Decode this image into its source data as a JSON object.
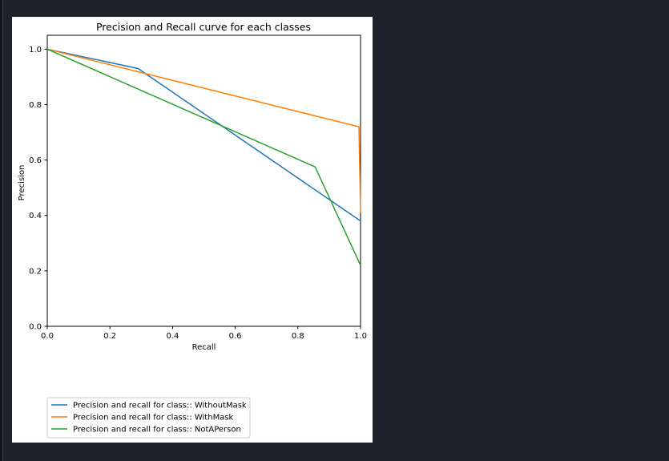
{
  "chart_data": {
    "type": "line",
    "title": "Precision and Recall curve for each classes",
    "xlabel": "Recall",
    "ylabel": "Precision",
    "xlim": [
      0.0,
      1.0
    ],
    "ylim": [
      0.0,
      1.05
    ],
    "x_ticks": [
      "0.0",
      "0.2",
      "0.4",
      "0.6",
      "0.8",
      "1.0"
    ],
    "y_ticks": [
      "0.0",
      "0.2",
      "0.4",
      "0.6",
      "0.8",
      "1.0"
    ],
    "grid": false,
    "legend_position": "bottom-left",
    "series": [
      {
        "name": "Precision and recall for class:: WithoutMask",
        "color": "#1f77b4",
        "points": [
          [
            0.0,
            1.0
          ],
          [
            0.29,
            0.93
          ],
          [
            1.0,
            0.38
          ]
        ]
      },
      {
        "name": "Precision and recall for class:: WithMask",
        "color": "#ff7f0e",
        "points": [
          [
            0.0,
            1.0
          ],
          [
            0.995,
            0.72
          ],
          [
            1.0,
            0.41
          ]
        ]
      },
      {
        "name": "Precision and recall for class:: NotAPerson",
        "color": "#2ca02c",
        "points": [
          [
            0.0,
            1.0
          ],
          [
            0.855,
            0.575
          ],
          [
            1.0,
            0.22
          ]
        ]
      }
    ]
  }
}
